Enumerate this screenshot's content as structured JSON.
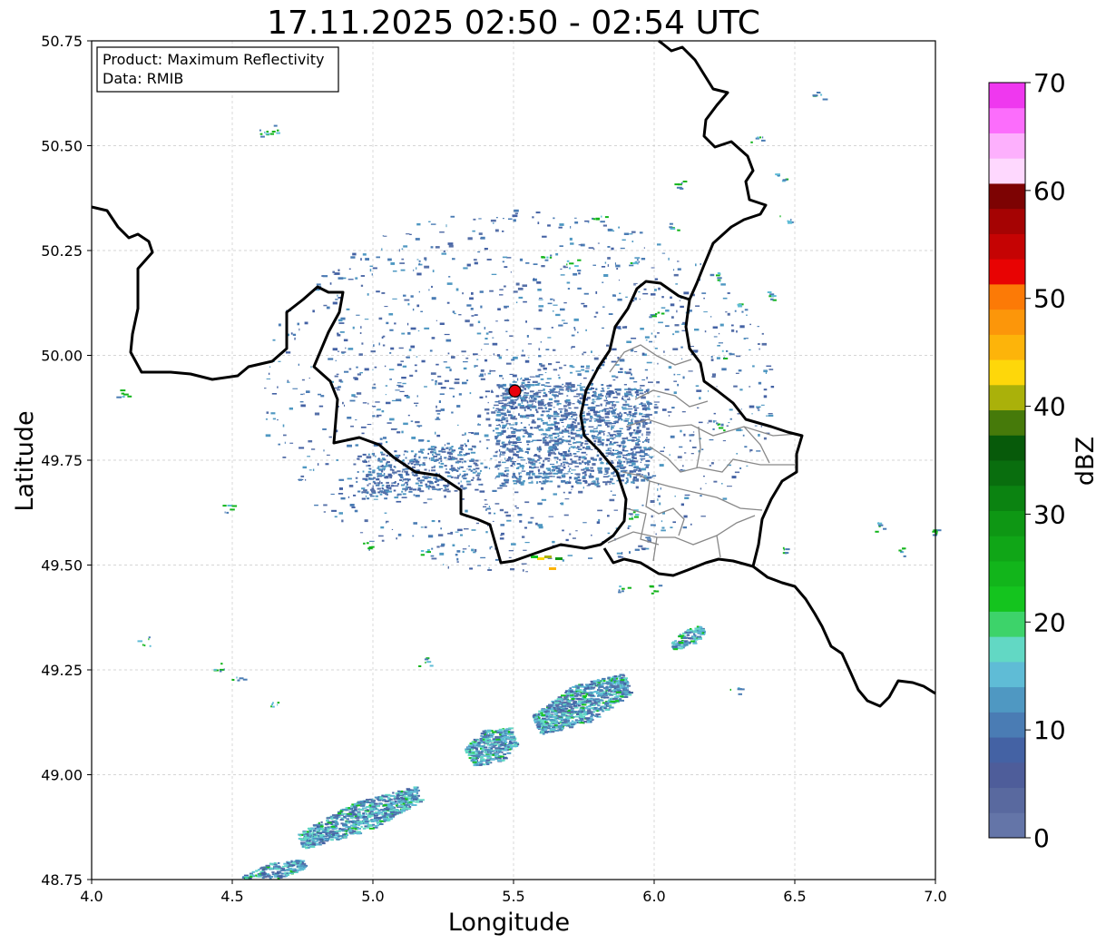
{
  "title": "17.11.2025 02:50 - 02:54 UTC",
  "info_box": {
    "line1": "Product: Maximum Reflectivity",
    "line2": "Data: RMIB"
  },
  "axes": {
    "xlabel": "Longitude",
    "ylabel": "Latitude",
    "xlim": [
      4.0,
      7.0
    ],
    "ylim": [
      48.75,
      50.75
    ],
    "xticks": [
      "4.0",
      "4.5",
      "5.0",
      "5.5",
      "6.0",
      "6.5",
      "7.0"
    ],
    "yticks": [
      "50.75",
      "50.50",
      "50.25",
      "50.00",
      "49.75",
      "49.50",
      "49.25",
      "49.00",
      "48.75"
    ],
    "grid": true
  },
  "radar_site": {
    "lon": 5.505,
    "lat": 49.915,
    "color": "#e8000b"
  },
  "colorbar": {
    "label": "dBZ",
    "min": 0,
    "max": 70,
    "ticks": [
      "0",
      "10",
      "20",
      "30",
      "40",
      "50",
      "60",
      "70"
    ],
    "colors": [
      "#6475a8",
      "#59699f",
      "#4e5d9a",
      "#4462a4",
      "#4a7cb4",
      "#4f98c2",
      "#5fbcd6",
      "#62d8c4",
      "#3dd36a",
      "#14c41e",
      "#12b51b",
      "#10a617",
      "#0e9714",
      "#0b8311",
      "#096e0e",
      "#075a0a",
      "#467a0a",
      "#aab10a",
      "#fed70a",
      "#fdb40a",
      "#fc960a",
      "#fc7a06",
      "#e80303",
      "#c50303",
      "#a50303",
      "#7d0303",
      "#fed8fe",
      "#fdb0fd",
      "#fc6dfc",
      "#ef38ef"
    ]
  }
}
